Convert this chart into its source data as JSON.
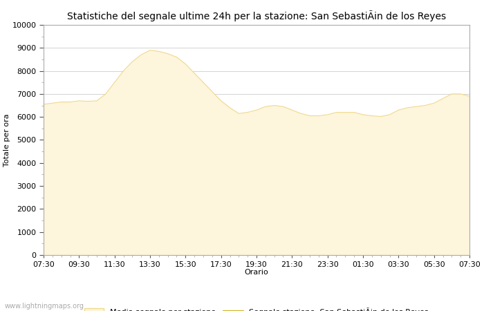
{
  "title": "Statistiche del segnale ultime 24h per la stazione: San SebastiÃin de los Reyes",
  "xlabel": "Orario",
  "ylabel": "Totale per ora",
  "xlim": [
    0,
    24
  ],
  "ylim": [
    0,
    10000
  ],
  "yticks": [
    0,
    1000,
    2000,
    3000,
    4000,
    5000,
    6000,
    7000,
    8000,
    9000,
    10000
  ],
  "xtick_labels": [
    "07:30",
    "09:30",
    "11:30",
    "13:30",
    "15:30",
    "17:30",
    "19:30",
    "21:30",
    "23:30",
    "01:30",
    "03:30",
    "05:30",
    "07:30"
  ],
  "fill_color": "#fdf5dc",
  "fill_edge_color": "#f0d88a",
  "line_color": "#c8a800",
  "background_color": "#ffffff",
  "grid_color": "#cccccc",
  "watermark": "www.lightningmaps.org",
  "legend_fill_label": "Media segnale per stazione",
  "legend_line_label": "Segnale stazione: San SebastiÃin de los Reyes",
  "x": [
    0,
    0.5,
    1,
    1.5,
    2,
    2.5,
    3,
    3.5,
    4,
    4.5,
    5,
    5.5,
    6,
    6.5,
    7,
    7.5,
    8,
    8.5,
    9,
    9.5,
    10,
    10.5,
    11,
    11.5,
    12,
    12.5,
    13,
    13.5,
    14,
    14.5,
    15,
    15.5,
    16,
    16.5,
    17,
    17.5,
    18,
    18.5,
    19,
    19.5,
    20,
    20.5,
    21,
    21.5,
    22,
    22.5,
    23,
    23.5,
    24
  ],
  "y": [
    6550,
    6600,
    6650,
    6650,
    6700,
    6680,
    6700,
    7000,
    7500,
    8000,
    8400,
    8700,
    8900,
    8850,
    8750,
    8600,
    8300,
    7900,
    7500,
    7100,
    6700,
    6400,
    6150,
    6200,
    6300,
    6450,
    6500,
    6450,
    6300,
    6150,
    6050,
    6050,
    6100,
    6200,
    6200,
    6200,
    6100,
    6050,
    6020,
    6100,
    6300,
    6400,
    6450,
    6500,
    6600,
    6800,
    7000,
    7000,
    6900
  ],
  "title_fontsize": 10,
  "axis_label_fontsize": 8,
  "tick_fontsize": 8,
  "legend_fontsize": 8
}
